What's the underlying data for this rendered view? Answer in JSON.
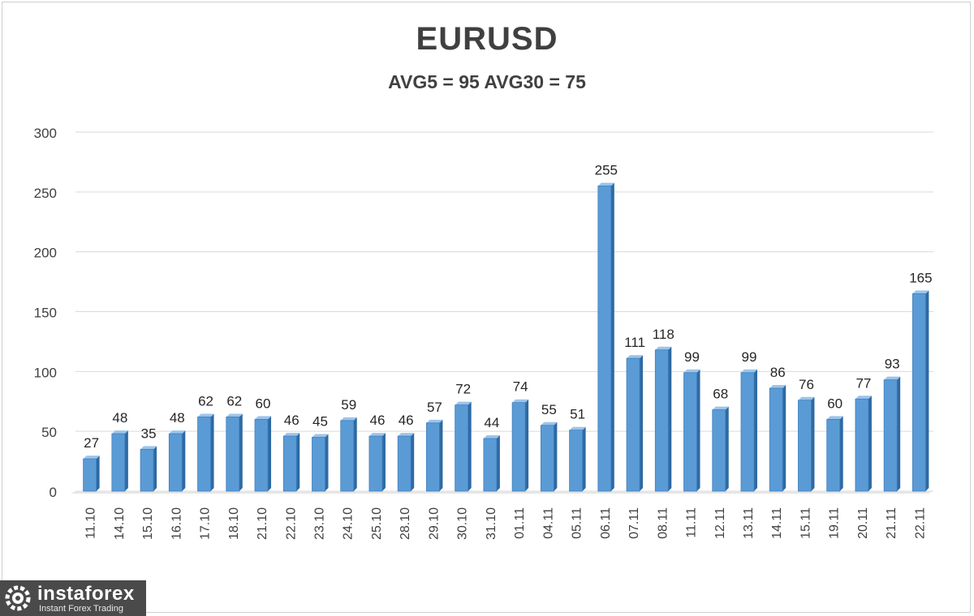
{
  "chart_data": {
    "type": "bar",
    "title": "EURUSD",
    "subtitle": "AVG5 = 95 AVG30 = 75",
    "categories": [
      "11.10",
      "14.10",
      "15.10",
      "16.10",
      "17.10",
      "18.10",
      "21.10",
      "22.10",
      "23.10",
      "24.10",
      "25.10",
      "28.10",
      "29.10",
      "30.10",
      "31.10",
      "01.11",
      "04.11",
      "05.11",
      "06.11",
      "07.11",
      "08.11",
      "11.11",
      "12.11",
      "13.11",
      "14.11",
      "15.11",
      "19.11",
      "20.11",
      "21.11",
      "22.11"
    ],
    "values": [
      27,
      48,
      35,
      48,
      62,
      62,
      60,
      46,
      45,
      59,
      46,
      46,
      57,
      72,
      44,
      74,
      55,
      51,
      255,
      111,
      118,
      99,
      68,
      99,
      86,
      76,
      60,
      77,
      93,
      165
    ],
    "ylim": [
      0,
      300
    ],
    "yticks": [
      0,
      50,
      100,
      150,
      200,
      250,
      300
    ],
    "grid": true,
    "bar_color": "#5b9bd5",
    "bar_side_color": "#2e6aa3"
  },
  "brand": {
    "name": "instaforex",
    "tagline": "Instant Forex Trading"
  }
}
